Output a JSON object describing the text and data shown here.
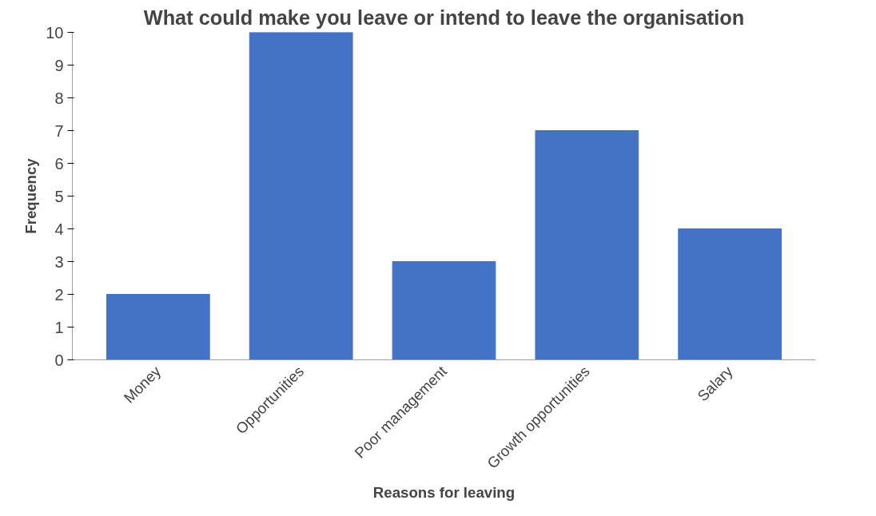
{
  "chart_data": {
    "type": "bar",
    "title": "What could make you leave or intend to leave the organisation",
    "xlabel": "Reasons for leaving",
    "ylabel": "Frequency",
    "categories": [
      "Money",
      "Opportunities",
      "Poor management",
      "Growth opportunities",
      "Salary"
    ],
    "values": [
      2,
      10,
      3,
      7,
      4
    ],
    "color": "#4472c4",
    "ylim": [
      0,
      10
    ],
    "yticks": [
      0,
      1,
      2,
      3,
      4,
      5,
      6,
      7,
      8,
      9,
      10
    ],
    "grid": false
  }
}
